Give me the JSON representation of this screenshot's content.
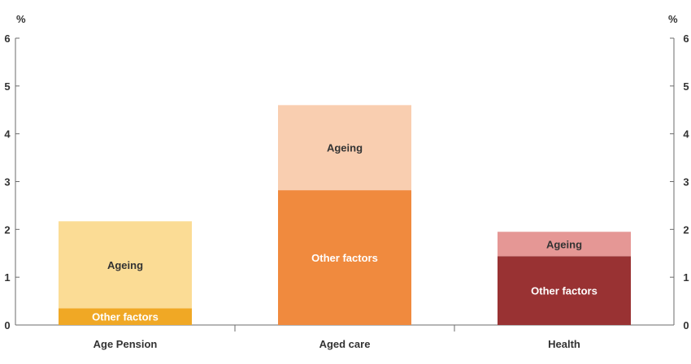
{
  "chart_data": {
    "type": "bar",
    "stacked": true,
    "title": "",
    "xlabel": "",
    "ylabel_left": "%",
    "ylabel_right": "%",
    "ylim": [
      0,
      6
    ],
    "yticks": [
      0,
      1,
      2,
      3,
      4,
      5,
      6
    ],
    "grid": false,
    "categories": [
      "Age Pension",
      "Aged care",
      "Health"
    ],
    "bars": [
      {
        "category": "Age Pension",
        "segments": [
          {
            "name": "Other factors",
            "value": 0.35,
            "color": "#f0a825",
            "label_color": "#ffffff"
          },
          {
            "name": "Ageing",
            "value": 1.82,
            "color": "#fbdc95",
            "label_color": "#333333"
          }
        ]
      },
      {
        "category": "Aged care",
        "segments": [
          {
            "name": "Other factors",
            "value": 2.82,
            "color": "#f08a3e",
            "label_color": "#ffffff"
          },
          {
            "name": "Ageing",
            "value": 1.78,
            "color": "#f9ceb0",
            "label_color": "#333333"
          }
        ]
      },
      {
        "category": "Health",
        "segments": [
          {
            "name": "Other factors",
            "value": 1.44,
            "color": "#993233",
            "label_color": "#ffffff"
          },
          {
            "name": "Ageing",
            "value": 0.51,
            "color": "#e59795",
            "label_color": "#333333"
          }
        ]
      }
    ]
  }
}
